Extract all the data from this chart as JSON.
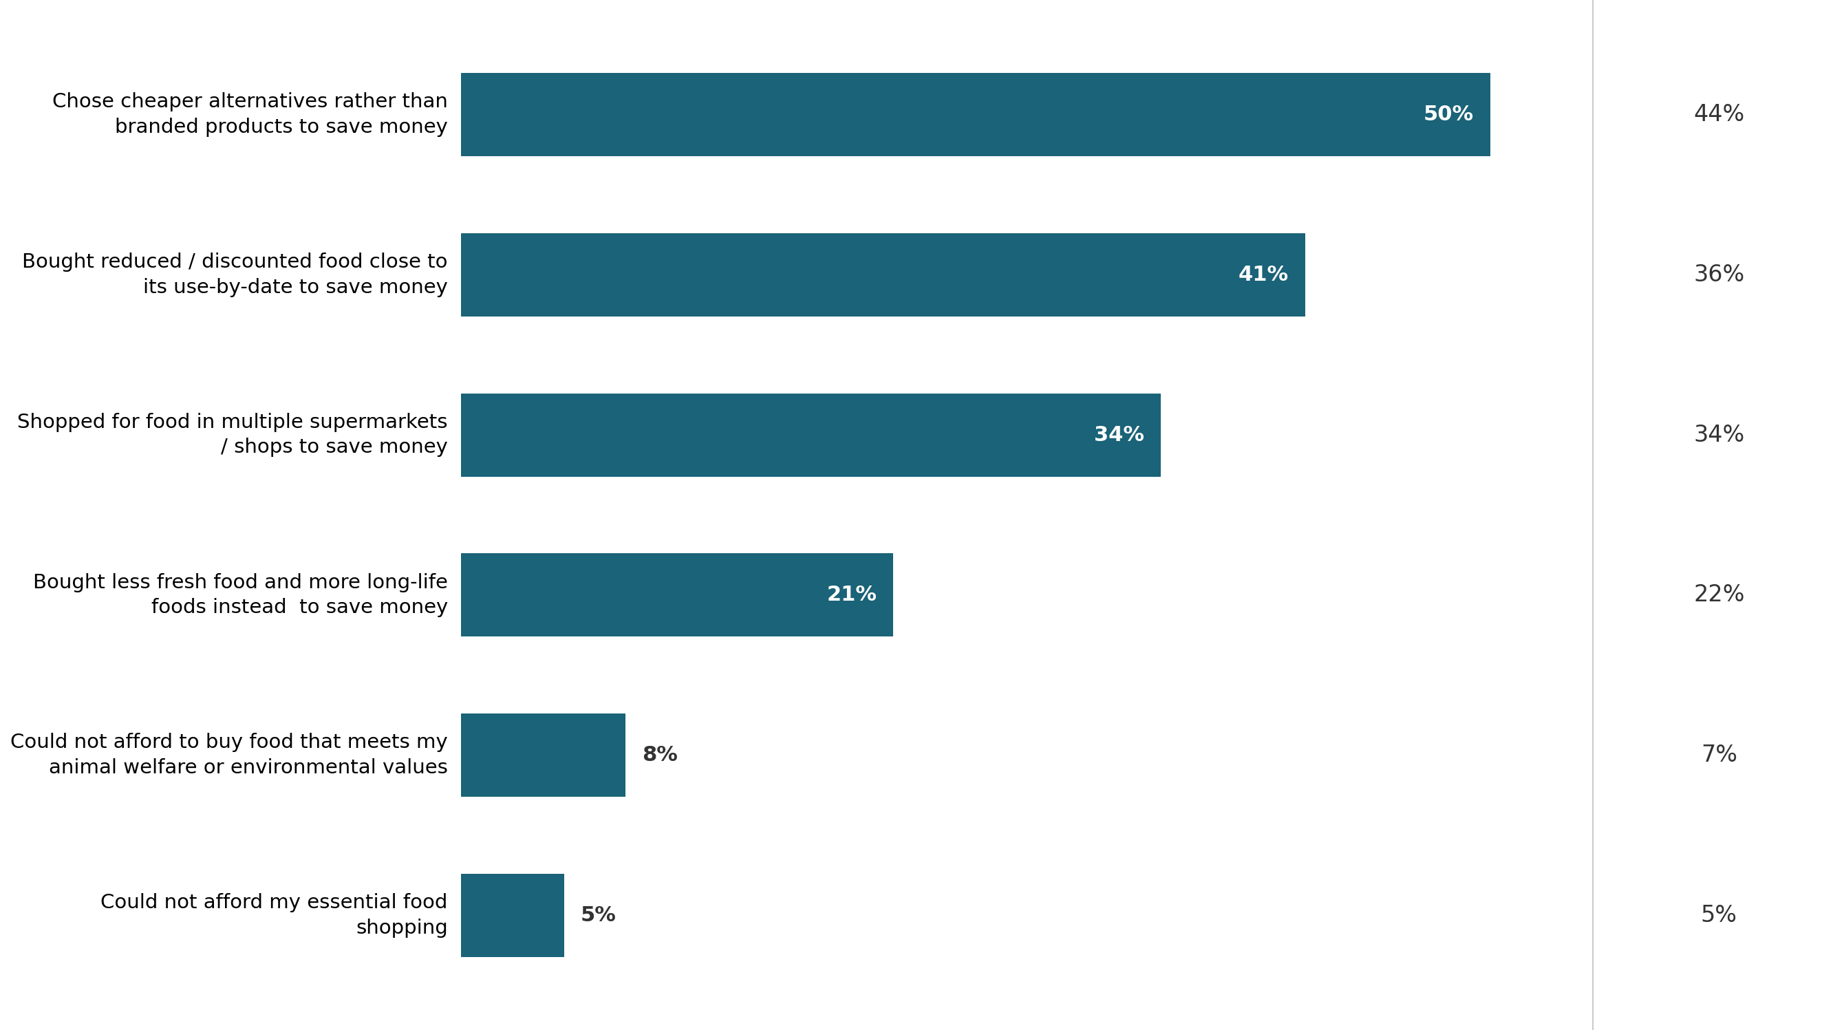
{
  "categories": [
    "Chose cheaper alternatives rather than\nbranded products to save money",
    "Bought reduced / discounted food close to\nits use-by-date to save money",
    "Shopped for food in multiple supermarkets\n/ shops to save money",
    "Bought less fresh food and more long-life\nfoods instead  to save money",
    "Could not afford to buy food that meets my\nanimal welfare or environmental values",
    "Could not afford my essential food\nshopping"
  ],
  "sept_values": [
    50,
    41,
    34,
    21,
    8,
    5
  ],
  "aug_values": [
    44,
    36,
    34,
    22,
    7,
    5
  ],
  "bar_color": "#1a6378",
  "header_color": "#1a6378",
  "bar_label_color": "#ffffff",
  "aug_text_color": "#333333",
  "outside_label_color": "#333333",
  "background_color": "#ffffff",
  "bar_height": 0.52,
  "xlim_max": 55,
  "header_fontsize": 26,
  "value_inside_fontsize": 22,
  "value_outside_fontsize": 22,
  "aug_value_fontsize": 24,
  "category_fontsize": 21,
  "divider_color": "#cccccc",
  "inside_label_threshold": 10
}
